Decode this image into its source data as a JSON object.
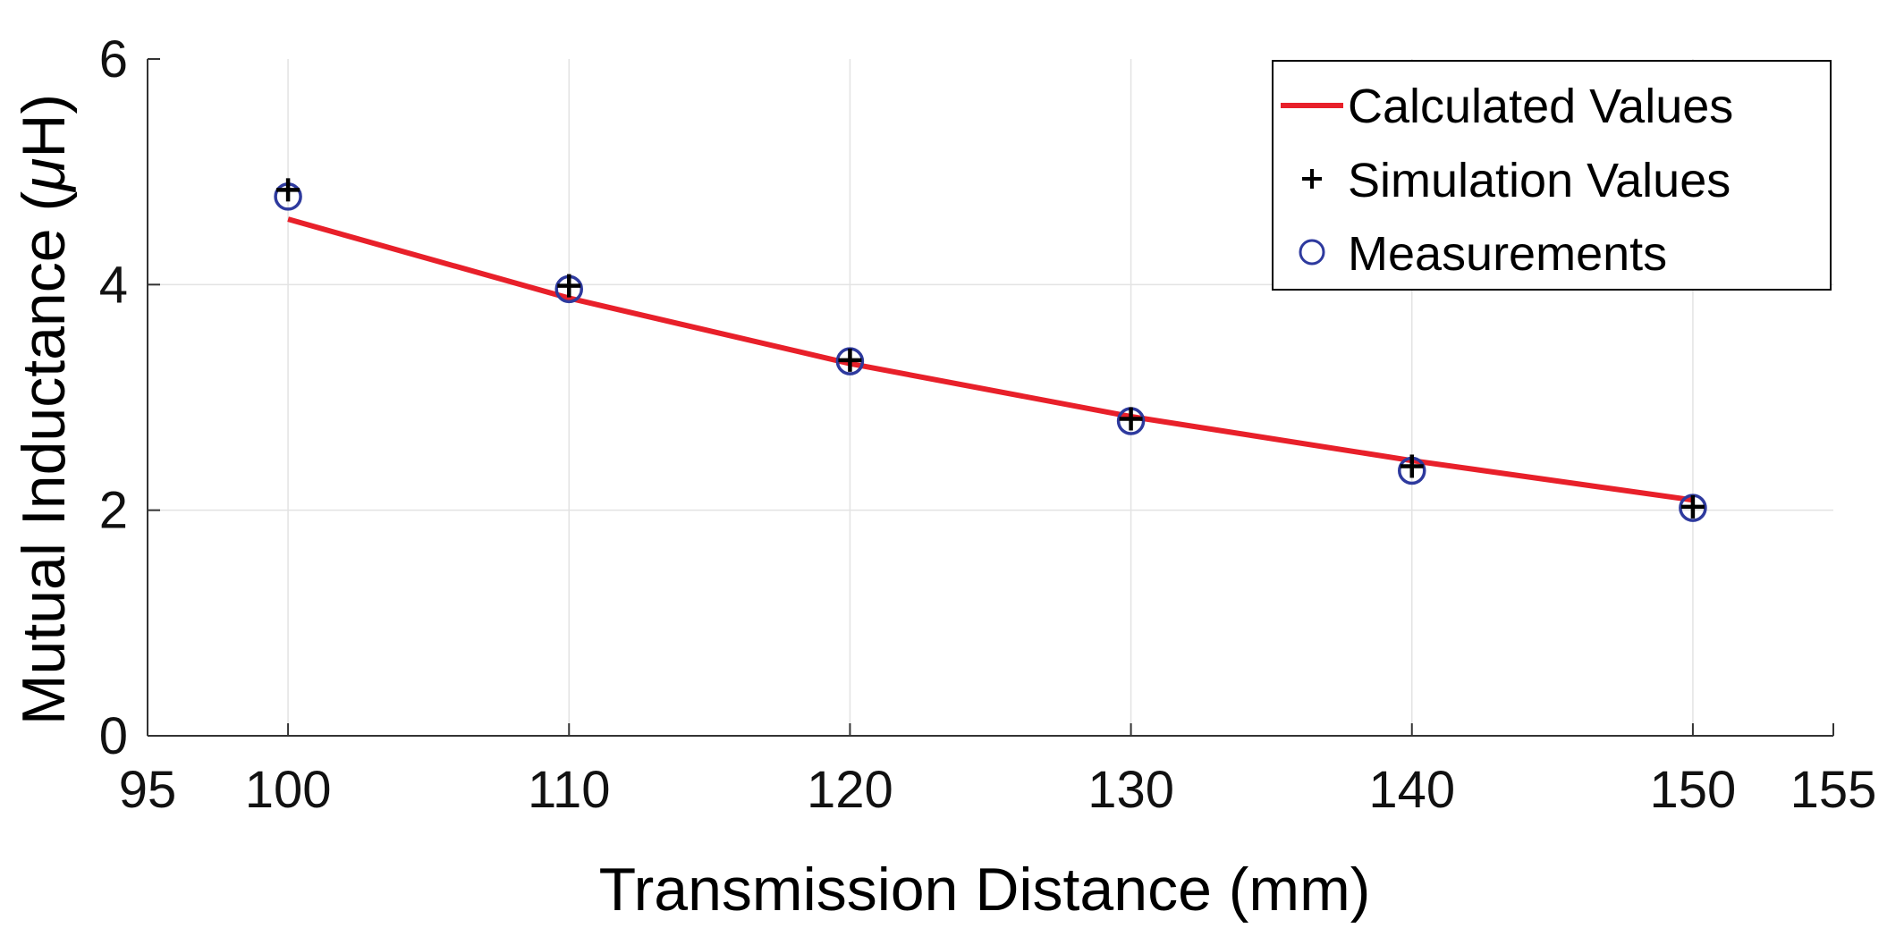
{
  "chart_data": {
    "type": "line",
    "title": "",
    "xlabel": "Transmission Distance (mm)",
    "ylabel_text": "Mutual Inductance (",
    "ylabel_symbol": "μ",
    "ylabel_tail": "H)",
    "xlim": [
      95,
      155
    ],
    "ylim": [
      0,
      6
    ],
    "xticks": [
      95,
      100,
      110,
      120,
      130,
      140,
      150,
      155
    ],
    "yticks": [
      0,
      2,
      4,
      6
    ],
    "grid": true,
    "legend_position": "top-right",
    "series": [
      {
        "name": "Calculated Values",
        "style": "line",
        "color": "#e8202a",
        "x": [
          100,
          110,
          120,
          130,
          140,
          150
        ],
        "y": [
          4.58,
          3.88,
          3.3,
          2.83,
          2.44,
          2.09
        ]
      },
      {
        "name": "Simulation Values",
        "style": "plus",
        "color": "#000000",
        "x": [
          100,
          110,
          120,
          130,
          140,
          150
        ],
        "y": [
          4.84,
          3.99,
          3.33,
          2.81,
          2.39,
          2.03
        ]
      },
      {
        "name": "Measurements",
        "style": "circle",
        "color": "#2e3a9e",
        "x": [
          100,
          110,
          120,
          130,
          140,
          150
        ],
        "y": [
          4.78,
          3.96,
          3.32,
          2.79,
          2.35,
          2.02
        ]
      }
    ]
  }
}
